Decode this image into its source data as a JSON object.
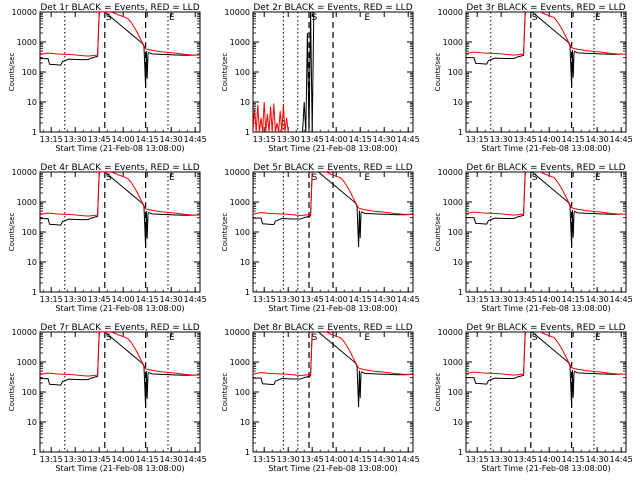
{
  "chart_data": {
    "type": "line",
    "scale": "log",
    "ylim": [
      1,
      10000
    ],
    "xlim": [
      "13:08",
      "14:48"
    ],
    "xlabel": "Start Time (21-Feb-08 13:08:00)",
    "ylabel": "Counts/sec",
    "yticks": [
      "1",
      "10",
      "100",
      "1000",
      "10000"
    ],
    "xticks": [
      "13:15",
      "13:30",
      "13:45",
      "14:00",
      "14:15",
      "14:30",
      "14:45"
    ],
    "series_colors": {
      "events": "#000000",
      "lld": "#ff0000"
    },
    "markers": {
      "dashed": [
        40.5,
        66
      ],
      "dotted": [
        15.5,
        80
      ],
      "labels": [
        {
          "text": "S",
          "x": 40.5
        },
        {
          "text": "E",
          "x": 80
        }
      ]
    },
    "panels": [
      {
        "title": "Det 1r BLACK = Events, RED = LLD"
      },
      {
        "title": "Det 2r BLACK = Events, RED = LLD",
        "dashed": [
          35,
          50
        ],
        "dotted": [
          19,
          28
        ],
        "labels": [
          {
            "text": "S",
            "x": 36
          },
          {
            "text": "E",
            "x": 69
          }
        ]
      },
      {
        "title": "Det 3r BLACK = Events, RED = LLD"
      },
      {
        "title": "Det 4r BLACK = Events, RED = LLD"
      },
      {
        "title": "Det 5r BLACK = Events, RED = LLD",
        "dashed": [
          35,
          50
        ],
        "dotted": [
          19,
          28
        ],
        "labels": [
          {
            "text": "S",
            "x": 36
          },
          {
            "text": "E",
            "x": 69
          }
        ]
      },
      {
        "title": "Det 6r BLACK = Events, RED = LLD"
      },
      {
        "title": "Det 7r BLACK = Events, RED = LLD"
      },
      {
        "title": "Det 8r BLACK = Events, RED = LLD",
        "dashed": [
          35,
          50
        ],
        "dotted": [
          19,
          28
        ],
        "labels": [
          {
            "text": "S",
            "x": 36
          },
          {
            "text": "E",
            "x": 69
          }
        ]
      },
      {
        "title": "Det 9r BLACK = Events, RED = LLD"
      }
    ],
    "series": [
      {
        "name": "Events",
        "x": [
          0,
          5,
          6,
          13,
          14,
          18,
          25,
          30,
          32,
          36,
          37,
          40,
          40.5,
          64,
          65,
          66,
          66.5,
          67,
          67.5,
          68,
          69,
          70,
          75,
          80,
          85,
          90,
          95,
          100
        ],
        "y": [
          280,
          280,
          180,
          170,
          220,
          270,
          260,
          260,
          290,
          330,
          10000,
          10000,
          10000,
          900,
          700,
          30,
          500,
          60,
          400,
          450,
          420,
          400,
          390,
          380,
          370,
          360,
          360,
          370
        ]
      },
      {
        "name": "LLD",
        "x": [
          0,
          5,
          10,
          20,
          30,
          36,
          37,
          40,
          44,
          47,
          49,
          52,
          55,
          57,
          60,
          63,
          66,
          68,
          70,
          75,
          80,
          85,
          90,
          95,
          100
        ],
        "y": [
          380,
          430,
          400,
          380,
          340,
          370,
          10000,
          10000,
          10000,
          9000,
          8000,
          7000,
          6000,
          4500,
          2500,
          1200,
          600,
          560,
          530,
          480,
          450,
          420,
          390,
          370,
          370
        ]
      }
    ],
    "series_2r": [
      {
        "name": "LLD",
        "x": [
          0,
          1,
          2,
          3,
          4,
          5,
          6,
          7,
          8,
          9,
          10,
          11,
          12,
          13,
          14,
          15,
          16,
          17,
          18,
          19,
          20,
          21,
          22
        ],
        "y": [
          1,
          6,
          1,
          8,
          1,
          3,
          1,
          10,
          1,
          4,
          1,
          7,
          1,
          9,
          1,
          2,
          1,
          5,
          1,
          8,
          1,
          3,
          1
        ]
      },
      {
        "name": "Events",
        "x": [
          31,
          32,
          33,
          34,
          35,
          36,
          37,
          38
        ],
        "y": [
          1,
          10,
          1,
          2000,
          1,
          10000,
          1,
          10000
        ]
      }
    ]
  }
}
